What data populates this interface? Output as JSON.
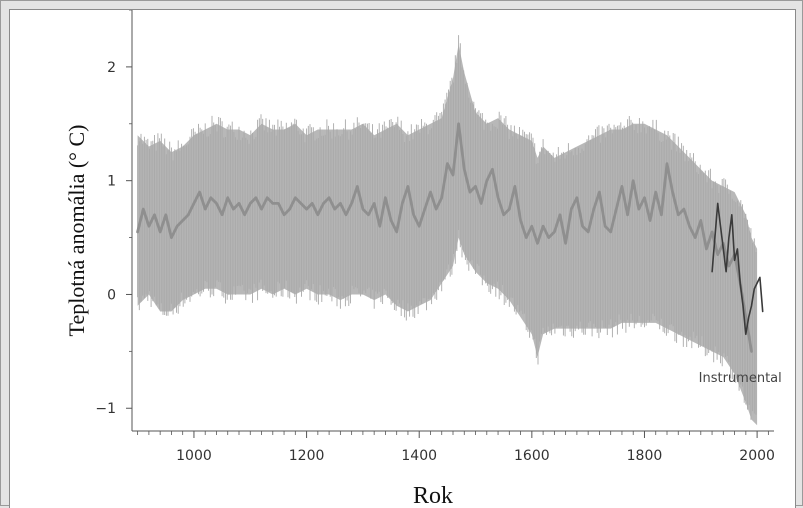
{
  "chart_data": {
    "type": "line",
    "title": "",
    "xlabel": "Rok",
    "ylabel": "Teplotná anomália (° C)",
    "xlim": [
      890,
      2030
    ],
    "ylim": [
      -1.2,
      2.5
    ],
    "x_ticks": [
      1000,
      1200,
      1400,
      1600,
      1800,
      2000
    ],
    "y_ticks": [
      -1,
      0,
      1,
      2
    ],
    "grid": false,
    "legend": "none",
    "annotations": [
      {
        "text": "Instrumental",
        "x": 1970,
        "y": -0.77
      }
    ],
    "colors": {
      "band": "#b8b8b8",
      "reconstruction": "#8f8f8f",
      "instrumental": "#3a3a3a",
      "axis": "#555555"
    },
    "series": [
      {
        "name": "",
        "style": "uncertainty-band",
        "x": [
          900,
          920,
          940,
          960,
          980,
          1000,
          1020,
          1040,
          1060,
          1080,
          1100,
          1120,
          1140,
          1160,
          1180,
          1200,
          1220,
          1240,
          1260,
          1280,
          1300,
          1320,
          1340,
          1360,
          1380,
          1400,
          1420,
          1440,
          1460,
          1470,
          1480,
          1500,
          1520,
          1540,
          1560,
          1580,
          1600,
          1610,
          1620,
          1640,
          1660,
          1680,
          1700,
          1720,
          1740,
          1760,
          1780,
          1800,
          1820,
          1840,
          1860,
          1880,
          1900,
          1920,
          1940,
          1960,
          1980,
          1990,
          2000
        ],
        "upper": [
          1.4,
          1.3,
          1.35,
          1.25,
          1.3,
          1.4,
          1.45,
          1.5,
          1.45,
          1.45,
          1.4,
          1.5,
          1.45,
          1.45,
          1.5,
          1.4,
          1.45,
          1.45,
          1.45,
          1.45,
          1.5,
          1.4,
          1.45,
          1.5,
          1.4,
          1.45,
          1.5,
          1.55,
          1.9,
          2.2,
          1.95,
          1.6,
          1.5,
          1.55,
          1.45,
          1.4,
          1.35,
          1.2,
          1.3,
          1.2,
          1.25,
          1.3,
          1.35,
          1.4,
          1.45,
          1.45,
          1.5,
          1.5,
          1.45,
          1.4,
          1.3,
          1.2,
          1.1,
          1.0,
          0.95,
          0.9,
          0.7,
          0.5,
          0.4
        ],
        "lower": [
          -0.1,
          0.0,
          -0.15,
          -0.15,
          -0.05,
          0.0,
          0.05,
          0.05,
          0.0,
          0.0,
          0.0,
          0.05,
          0.0,
          0.05,
          0.0,
          0.05,
          0.0,
          0.0,
          -0.05,
          0.0,
          0.0,
          -0.05,
          0.0,
          -0.1,
          -0.15,
          -0.1,
          -0.05,
          0.1,
          0.25,
          0.5,
          0.35,
          0.2,
          0.1,
          0.05,
          -0.05,
          -0.2,
          -0.35,
          -0.55,
          -0.35,
          -0.3,
          -0.3,
          -0.3,
          -0.3,
          -0.3,
          -0.3,
          -0.25,
          -0.25,
          -0.25,
          -0.25,
          -0.3,
          -0.35,
          -0.4,
          -0.45,
          -0.5,
          -0.55,
          -0.7,
          -0.95,
          -1.1,
          -1.15
        ]
      },
      {
        "name": "",
        "style": "reconstruction",
        "x": [
          900,
          910,
          920,
          930,
          940,
          950,
          960,
          970,
          980,
          990,
          1000,
          1010,
          1020,
          1030,
          1040,
          1050,
          1060,
          1070,
          1080,
          1090,
          1100,
          1110,
          1120,
          1130,
          1140,
          1150,
          1160,
          1170,
          1180,
          1190,
          1200,
          1210,
          1220,
          1230,
          1240,
          1250,
          1260,
          1270,
          1280,
          1290,
          1300,
          1310,
          1320,
          1330,
          1340,
          1350,
          1360,
          1370,
          1380,
          1390,
          1400,
          1410,
          1420,
          1430,
          1440,
          1450,
          1460,
          1470,
          1480,
          1490,
          1500,
          1510,
          1520,
          1530,
          1540,
          1550,
          1560,
          1570,
          1580,
          1590,
          1600,
          1610,
          1620,
          1630,
          1640,
          1650,
          1660,
          1670,
          1680,
          1690,
          1700,
          1710,
          1720,
          1730,
          1740,
          1750,
          1760,
          1770,
          1780,
          1790,
          1800,
          1810,
          1820,
          1830,
          1840,
          1850,
          1860,
          1870,
          1880,
          1890,
          1900,
          1910,
          1920,
          1930,
          1940,
          1950,
          1960,
          1970,
          1980,
          1990
        ],
        "y": [
          0.55,
          0.75,
          0.6,
          0.7,
          0.55,
          0.7,
          0.5,
          0.6,
          0.65,
          0.7,
          0.8,
          0.9,
          0.75,
          0.85,
          0.8,
          0.7,
          0.85,
          0.75,
          0.8,
          0.7,
          0.8,
          0.85,
          0.75,
          0.85,
          0.8,
          0.8,
          0.7,
          0.75,
          0.85,
          0.8,
          0.75,
          0.8,
          0.7,
          0.8,
          0.85,
          0.75,
          0.8,
          0.7,
          0.8,
          0.95,
          0.75,
          0.7,
          0.8,
          0.6,
          0.85,
          0.65,
          0.55,
          0.8,
          0.95,
          0.7,
          0.6,
          0.75,
          0.9,
          0.75,
          0.85,
          1.15,
          1.05,
          1.5,
          1.1,
          0.9,
          0.95,
          0.8,
          1.0,
          1.1,
          0.85,
          0.7,
          0.75,
          0.95,
          0.65,
          0.5,
          0.6,
          0.45,
          0.6,
          0.5,
          0.55,
          0.7,
          0.45,
          0.75,
          0.85,
          0.6,
          0.55,
          0.75,
          0.9,
          0.6,
          0.55,
          0.75,
          0.95,
          0.7,
          1.0,
          0.75,
          0.85,
          0.65,
          0.9,
          0.7,
          1.15,
          0.9,
          0.7,
          0.75,
          0.6,
          0.5,
          0.65,
          0.4,
          0.55,
          0.35,
          0.45,
          0.25,
          0.35,
          0.1,
          -0.2,
          -0.5
        ]
      },
      {
        "name": "Instrumental",
        "style": "instrumental",
        "x": [
          1920,
          1925,
          1930,
          1935,
          1940,
          1945,
          1950,
          1955,
          1960,
          1965,
          1970,
          1975,
          1980,
          1985,
          1990,
          1995,
          2000,
          2005,
          2010
        ],
        "y": [
          0.2,
          0.5,
          0.8,
          0.6,
          0.4,
          0.2,
          0.5,
          0.7,
          0.3,
          0.4,
          0.1,
          -0.1,
          -0.35,
          -0.2,
          -0.1,
          0.05,
          0.1,
          0.15,
          -0.15
        ]
      }
    ]
  }
}
